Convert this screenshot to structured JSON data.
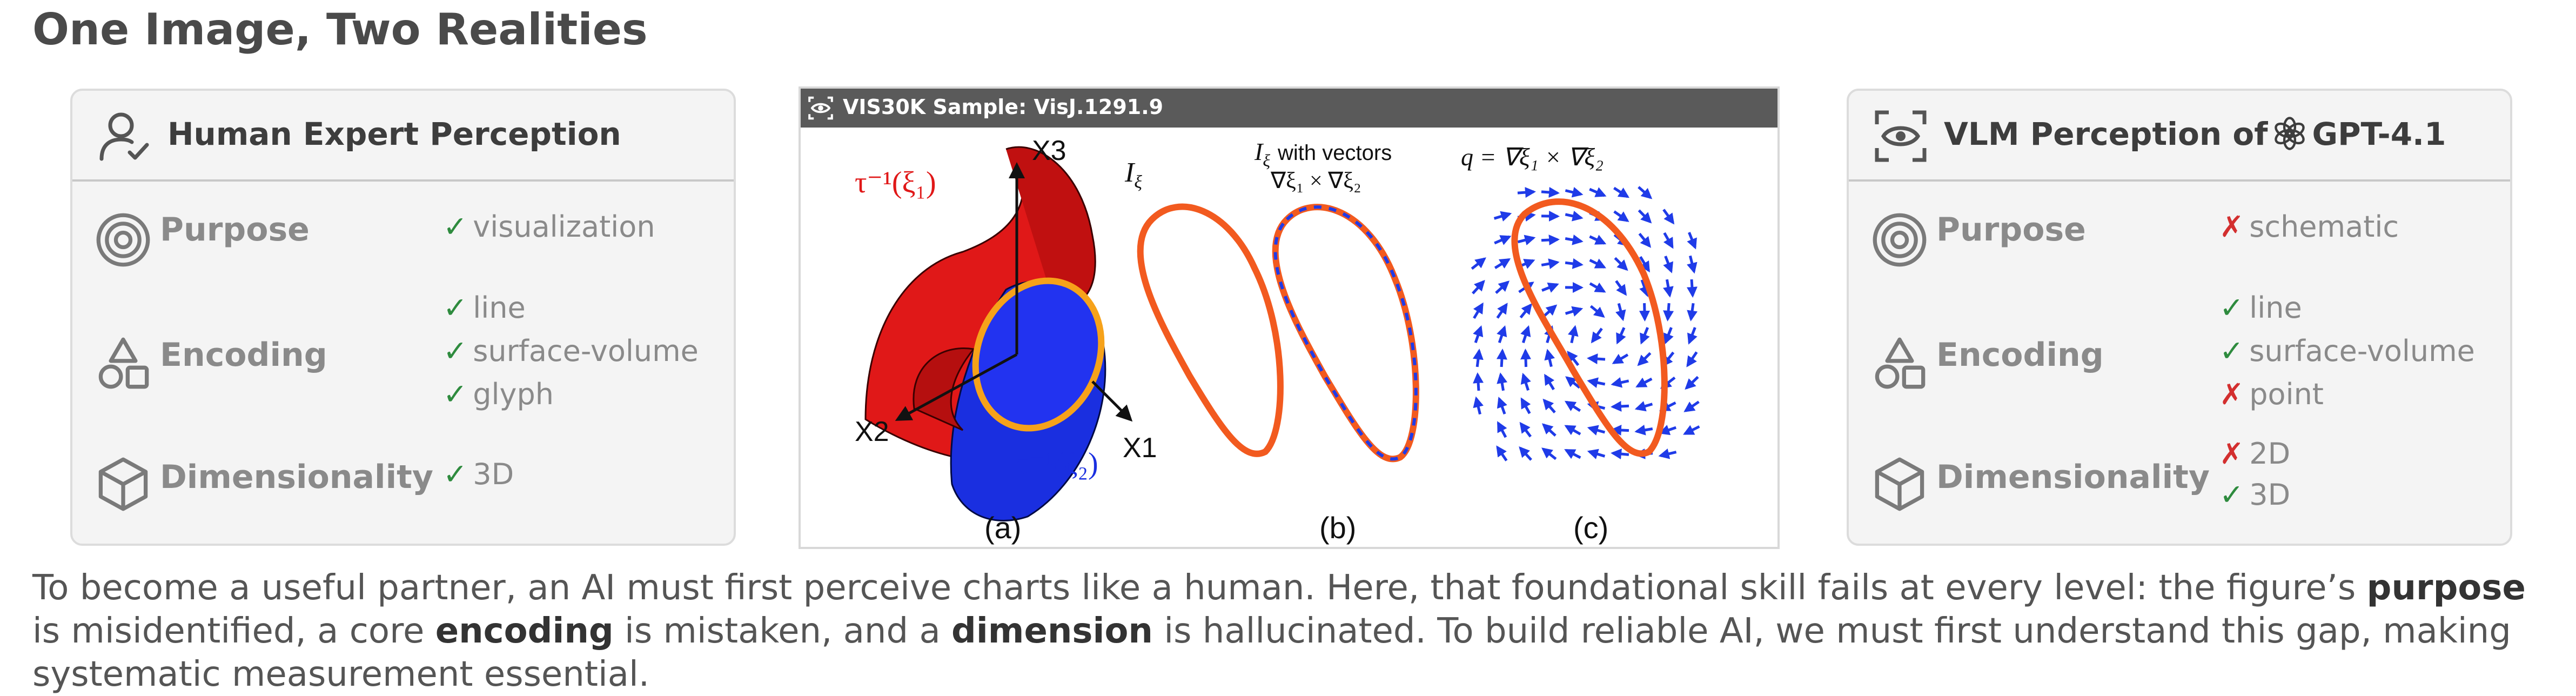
{
  "title": "One Image, Two Realities",
  "human_panel": {
    "title": "Human Expert Perception",
    "rows": [
      {
        "label": "Purpose",
        "icon": "target-icon",
        "values": [
          {
            "text": "visualization",
            "status": "correct"
          }
        ]
      },
      {
        "label": "Encoding",
        "icon": "shapes-icon",
        "values": [
          {
            "text": "line",
            "status": "correct"
          },
          {
            "text": "surface-volume",
            "status": "correct"
          },
          {
            "text": "glyph",
            "status": "correct"
          }
        ]
      },
      {
        "label": "Dimensionality",
        "icon": "cube-icon",
        "values": [
          {
            "text": "3D",
            "status": "correct"
          }
        ]
      }
    ]
  },
  "vlm_panel": {
    "title_prefix": "VLM Perception of",
    "model": "GPT-4.1",
    "rows": [
      {
        "label": "Purpose",
        "icon": "target-icon",
        "values": [
          {
            "text": "schematic",
            "status": "wrong"
          }
        ]
      },
      {
        "label": "Encoding",
        "icon": "shapes-icon",
        "values": [
          {
            "text": "line",
            "status": "correct"
          },
          {
            "text": "surface-volume",
            "status": "correct"
          },
          {
            "text": "point",
            "status": "wrong"
          }
        ]
      },
      {
        "label": "Dimensionality",
        "icon": "cube-icon",
        "values": [
          {
            "text": "2D",
            "status": "wrong"
          },
          {
            "text": "3D",
            "status": "correct"
          }
        ]
      }
    ]
  },
  "marks": {
    "correct": "✓",
    "wrong": "✗"
  },
  "colors": {
    "correct": "#2e8b3e",
    "wrong": "#d32f2f",
    "surface_red": "#e01818",
    "surface_blue": "#1a2fe0",
    "curve_orange": "#f25a1f",
    "vector_blue": "#1f3be8"
  },
  "figure": {
    "header": "VIS30K Sample: VisJ.1291.9",
    "panel_labels": [
      "(a)",
      "(b)",
      "(c)"
    ],
    "a_axis_labels": [
      "X3",
      "X2",
      "X1"
    ],
    "a_surface_labels": [
      "τ⁻¹(ξ₁)",
      "τ⁻¹(ξ₂)"
    ],
    "b_title_1": "I",
    "b_title_1_sub": "ξ",
    "b_title_2": "I",
    "b_title_2_sub": "ξ",
    "b_title_2_suffix": "with vectors",
    "b_title_2_line2": "∇ξ₁ × ∇ξ₂",
    "c_title": "q = ∇ξ₁ × ∇ξ₂"
  },
  "caption": {
    "p1": "To become a useful partner, an AI must first perceive charts like a human. Here, that foundational skill fails at every level: the figure’s ",
    "b1": "purpose",
    "p2": " is misidentified, a core ",
    "b2": "encoding",
    "p3": " is mistaken, and a ",
    "b3": "dimension",
    "p4": " is hallucinated. To build reliable AI, we must first understand this gap, making systematic measurement essential."
  }
}
